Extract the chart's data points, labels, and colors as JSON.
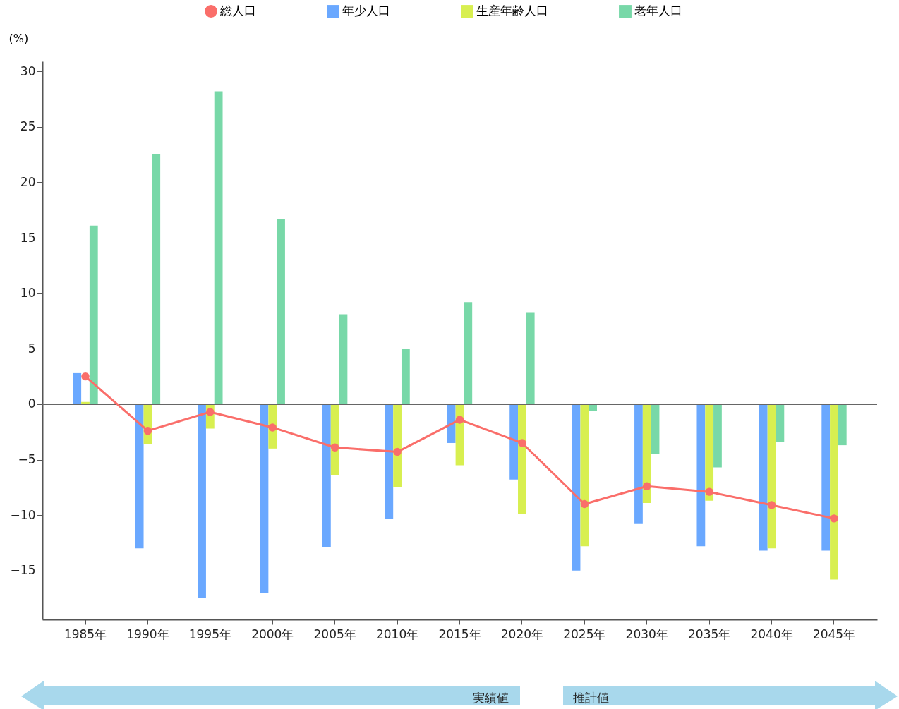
{
  "chart_data": {
    "type": "bar",
    "ylabel": "(%)",
    "categories": [
      "1985年",
      "1990年",
      "1995年",
      "2000年",
      "2005年",
      "2010年",
      "2015年",
      "2020年",
      "2025年",
      "2030年",
      "2035年",
      "2040年",
      "2045年"
    ],
    "series": [
      {
        "name": "総人口",
        "type": "line",
        "color": "#fa6e6a",
        "values": [
          2.5,
          -2.4,
          -0.7,
          -2.1,
          -3.9,
          -4.3,
          -1.4,
          -3.5,
          -9.0,
          -7.4,
          -7.9,
          -9.1,
          -10.3
        ]
      },
      {
        "name": "年少人口",
        "color": "#6aa8ff",
        "values": [
          2.8,
          -13.0,
          -17.5,
          -17.0,
          -12.9,
          -10.3,
          -3.5,
          -6.8,
          -15.0,
          -10.8,
          -12.8,
          -13.2,
          -13.2
        ]
      },
      {
        "name": "生産年齢人口",
        "color": "#d8ef50",
        "values": [
          0.2,
          -3.6,
          -2.2,
          -4.0,
          -6.4,
          -7.5,
          -5.5,
          -9.9,
          -12.8,
          -8.9,
          -8.7,
          -13.0,
          -15.8
        ]
      },
      {
        "name": "老年人口",
        "color": "#78d8a8",
        "values": [
          16.1,
          22.5,
          28.2,
          16.7,
          8.1,
          5.0,
          9.2,
          8.3,
          -0.6,
          -4.5,
          -5.7,
          -3.4,
          -3.7
        ]
      }
    ],
    "ylim": [
      -19.4,
      30.9
    ],
    "yticks": [
      -15,
      -10,
      -5,
      0,
      5,
      10,
      15,
      20,
      25,
      30
    ],
    "grid": false,
    "legend": "top",
    "marker": "circle",
    "ref_lines": [
      {
        "axis": "y",
        "value": 0
      }
    ],
    "annotations": [
      "実績値",
      "推計値"
    ]
  }
}
